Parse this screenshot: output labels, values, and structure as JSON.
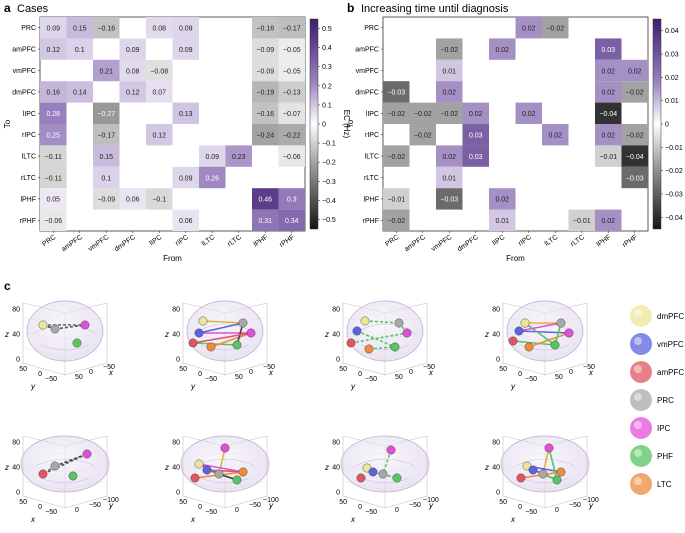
{
  "panels": {
    "a": {
      "letter": "a",
      "title": "Cases"
    },
    "b": {
      "letter": "b",
      "title": "Increasing time until diagnosis"
    },
    "c": {
      "letter": "c"
    }
  },
  "chart_data": [
    {
      "type": "heatmap",
      "title": "Cases",
      "xlabel": "From",
      "ylabel": "To",
      "colorbar_label": "EC (Hz)",
      "colorbar_ticks": [
        "0.5",
        "0.4",
        "0.3",
        "0.2",
        "0.1",
        "0",
        "−0.1",
        "−0.2",
        "−0.3",
        "−0.4",
        "−0.5"
      ],
      "vmin": -0.55,
      "vmax": 0.55,
      "rows": [
        "PRC",
        "amPFC",
        "vmPFC",
        "dmPFC",
        "lIPC",
        "rIPC",
        "lLTC",
        "rLTC",
        "lPHF",
        "rPHF"
      ],
      "cols": [
        "PRC",
        "amPFC",
        "vmPFC",
        "dmPFC",
        "lIPC",
        "rIPC",
        "lLTC",
        "rLTC",
        "lPHF",
        "rPHF"
      ],
      "values": [
        [
          "0.09",
          "0.15",
          "−0.16",
          null,
          "0.08",
          "0.09",
          null,
          null,
          "−0.16",
          "−0.17"
        ],
        [
          "0.12",
          "0.1",
          null,
          "0.09",
          null,
          "0.09",
          null,
          null,
          "−0.09",
          "−0.05"
        ],
        [
          null,
          null,
          "0.21",
          "0.08",
          "−0.08",
          null,
          null,
          null,
          "−0.09",
          "−0.05"
        ],
        [
          "0.16",
          "0.14",
          null,
          "0.12",
          "0.07",
          null,
          null,
          null,
          "−0.19",
          "−0.13"
        ],
        [
          "0.28",
          null,
          "−0.27",
          null,
          null,
          "0.13",
          null,
          null,
          "−0.16",
          "−0.07"
        ],
        [
          "0.25",
          null,
          "−0.17",
          null,
          "0.12",
          null,
          null,
          null,
          "−0.24",
          "−0.22"
        ],
        [
          "−0.11",
          null,
          "0.15",
          null,
          null,
          null,
          "0.09",
          "0.23",
          null,
          "−0.06"
        ],
        [
          "−0.11",
          null,
          "0.1",
          null,
          null,
          "0.09",
          "0.26",
          null,
          null,
          null
        ],
        [
          "0.05",
          null,
          "−0.09",
          "0.06",
          "−0.1",
          null,
          null,
          null,
          "0.46",
          "0.3"
        ],
        [
          "−0.06",
          null,
          null,
          null,
          null,
          "0.06",
          null,
          null,
          "0.31",
          "0.34"
        ]
      ]
    },
    {
      "type": "heatmap",
      "title": "Increasing time until diagnosis",
      "xlabel": "From",
      "ylabel": "To",
      "colorbar_label": "EC (Hz)",
      "colorbar_ticks": [
        "0.04",
        "0.03",
        "0.02",
        "0.01",
        "0",
        "−0.01",
        "−0.02",
        "−0.03",
        "−0.04"
      ],
      "vmin": -0.045,
      "vmax": 0.045,
      "rows": [
        "PRC",
        "amPFC",
        "vmPFC",
        "dmPFC",
        "lIPC",
        "rIPC",
        "lLTC",
        "rLTC",
        "lPHF",
        "rPHF"
      ],
      "cols": [
        "PRC",
        "amPFC",
        "vmPFC",
        "dmPFC",
        "lIPC",
        "rIPC",
        "lLTC",
        "rLTC",
        "lPHF",
        "rPHF"
      ],
      "values": [
        [
          null,
          null,
          null,
          null,
          null,
          "0.02",
          "−0.02",
          null,
          null,
          null
        ],
        [
          null,
          null,
          "−0.02",
          null,
          "0.02",
          null,
          null,
          null,
          "0.03",
          null
        ],
        [
          null,
          null,
          "0.01",
          null,
          null,
          null,
          null,
          null,
          "0.02",
          "0.02"
        ],
        [
          "−0.03",
          null,
          "0.02",
          null,
          null,
          null,
          null,
          null,
          "0.02",
          "−0.02"
        ],
        [
          "−0.02",
          "−0.02",
          "−0.02",
          "0.02",
          null,
          "0.02",
          null,
          null,
          "−0.04",
          null
        ],
        [
          null,
          "−0.02",
          null,
          "0.03",
          null,
          null,
          "0.02",
          null,
          "0.02",
          "−0.02"
        ],
        [
          "−0.02",
          null,
          "0.02",
          "0.03",
          null,
          null,
          null,
          null,
          "−0.01",
          "−0.04"
        ],
        [
          null,
          null,
          "0.01",
          null,
          null,
          null,
          null,
          null,
          null,
          "−0.03"
        ],
        [
          "−0.01",
          null,
          "−0.03",
          null,
          "0.02",
          null,
          null,
          null,
          null,
          null
        ],
        [
          "−0.02",
          null,
          null,
          null,
          "0.01",
          null,
          null,
          "−0.01",
          "0.02",
          null
        ]
      ]
    }
  ],
  "brain_plots": {
    "axis_z": "z",
    "axis_x": "x",
    "axis_y": "y",
    "top_z_ticks": [
      "80",
      "40",
      "0"
    ],
    "top_y_ticks": [
      "50",
      "0",
      "−50"
    ],
    "top_x_ticks": [
      "50",
      "0",
      "−50"
    ],
    "bottom_z_ticks": [
      "80",
      "40",
      "0"
    ],
    "bottom_x_ticks": [
      "50",
      "0",
      "−50"
    ],
    "bottom_y_ticks": [
      "0",
      "−50",
      "−100"
    ]
  },
  "legend": [
    {
      "label": "dmPFC",
      "color": "#ece59a"
    },
    {
      "label": "vmPFC",
      "color": "#5a63e0"
    },
    {
      "label": "amPFC",
      "color": "#e05560"
    },
    {
      "label": "PRC",
      "color": "#a8a8a8"
    },
    {
      "label": "IPC",
      "color": "#e14fd8"
    },
    {
      "label": "PHF",
      "color": "#58c462"
    },
    {
      "label": "LTC",
      "color": "#ee8a3c"
    }
  ]
}
